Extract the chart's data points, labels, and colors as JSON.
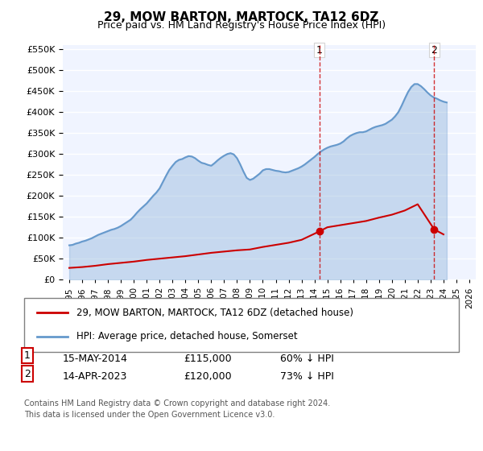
{
  "title": "29, MOW BARTON, MARTOCK, TA12 6DZ",
  "subtitle": "Price paid vs. HM Land Registry's House Price Index (HPI)",
  "legend_line1": "29, MOW BARTON, MARTOCK, TA12 6DZ (detached house)",
  "legend_line2": "HPI: Average price, detached house, Somerset",
  "footnote1": "Contains HM Land Registry data © Crown copyright and database right 2024.",
  "footnote2": "This data is licensed under the Open Government Licence v3.0.",
  "transaction1_label": "1",
  "transaction1_date": "15-MAY-2014",
  "transaction1_price": "£115,000",
  "transaction1_hpi": "60% ↓ HPI",
  "transaction2_label": "2",
  "transaction2_date": "14-APR-2023",
  "transaction2_price": "£120,000",
  "transaction2_hpi": "73% ↓ HPI",
  "hpi_color": "#6699cc",
  "price_color": "#cc0000",
  "dashed_vline_color": "#cc0000",
  "background_color": "#ffffff",
  "plot_bg_color": "#f0f4ff",
  "grid_color": "#ffffff",
  "ylim": [
    0,
    560000
  ],
  "yticks": [
    0,
    50000,
    100000,
    150000,
    200000,
    250000,
    300000,
    350000,
    400000,
    450000,
    500000,
    550000
  ],
  "xlim_start": 1994.5,
  "xlim_end": 2026.5,
  "marker1_x": 2014.37,
  "marker1_y": 115000,
  "marker2_x": 2023.28,
  "marker2_y": 120000,
  "hpi_years": [
    1995,
    1995.25,
    1995.5,
    1995.75,
    1996,
    1996.25,
    1996.5,
    1996.75,
    1997,
    1997.25,
    1997.5,
    1997.75,
    1998,
    1998.25,
    1998.5,
    1998.75,
    1999,
    1999.25,
    1999.5,
    1999.75,
    2000,
    2000.25,
    2000.5,
    2000.75,
    2001,
    2001.25,
    2001.5,
    2001.75,
    2002,
    2002.25,
    2002.5,
    2002.75,
    2003,
    2003.25,
    2003.5,
    2003.75,
    2004,
    2004.25,
    2004.5,
    2004.75,
    2005,
    2005.25,
    2005.5,
    2005.75,
    2006,
    2006.25,
    2006.5,
    2006.75,
    2007,
    2007.25,
    2007.5,
    2007.75,
    2008,
    2008.25,
    2008.5,
    2008.75,
    2009,
    2009.25,
    2009.5,
    2009.75,
    2010,
    2010.25,
    2010.5,
    2010.75,
    2011,
    2011.25,
    2011.5,
    2011.75,
    2012,
    2012.25,
    2012.5,
    2012.75,
    2013,
    2013.25,
    2013.5,
    2013.75,
    2014,
    2014.25,
    2014.5,
    2014.75,
    2015,
    2015.25,
    2015.5,
    2015.75,
    2016,
    2016.25,
    2016.5,
    2016.75,
    2017,
    2017.25,
    2017.5,
    2017.75,
    2018,
    2018.25,
    2018.5,
    2018.75,
    2019,
    2019.25,
    2019.5,
    2019.75,
    2020,
    2020.25,
    2020.5,
    2020.75,
    2021,
    2021.25,
    2021.5,
    2021.75,
    2022,
    2022.25,
    2022.5,
    2022.75,
    2023,
    2023.25,
    2023.5,
    2023.75,
    2024,
    2024.25
  ],
  "hpi_values": [
    82000,
    83000,
    86000,
    88000,
    91000,
    93000,
    96000,
    99000,
    103000,
    107000,
    110000,
    113000,
    116000,
    119000,
    121000,
    124000,
    128000,
    133000,
    138000,
    143000,
    151000,
    160000,
    168000,
    175000,
    182000,
    191000,
    200000,
    208000,
    218000,
    233000,
    248000,
    262000,
    272000,
    281000,
    286000,
    288000,
    292000,
    295000,
    294000,
    290000,
    284000,
    279000,
    277000,
    274000,
    272000,
    278000,
    285000,
    291000,
    296000,
    300000,
    302000,
    299000,
    290000,
    275000,
    258000,
    243000,
    238000,
    241000,
    247000,
    253000,
    261000,
    264000,
    264000,
    262000,
    260000,
    259000,
    257000,
    256000,
    257000,
    260000,
    263000,
    266000,
    270000,
    275000,
    281000,
    287000,
    293000,
    300000,
    306000,
    311000,
    315000,
    318000,
    320000,
    322000,
    325000,
    330000,
    337000,
    343000,
    347000,
    350000,
    352000,
    352000,
    354000,
    358000,
    362000,
    365000,
    367000,
    369000,
    372000,
    377000,
    382000,
    390000,
    400000,
    415000,
    432000,
    448000,
    460000,
    467000,
    467000,
    462000,
    455000,
    447000,
    440000,
    435000,
    432000,
    428000,
    425000,
    423000
  ],
  "price_years": [
    1995,
    1996,
    1997,
    1998,
    1999,
    2000,
    2001,
    2002,
    2003,
    2004,
    2005,
    2006,
    2007,
    2008,
    2009,
    2010,
    2011,
    2012,
    2013,
    2014.37,
    2015,
    2016,
    2017,
    2018,
    2019,
    2020,
    2021,
    2022,
    2023.28,
    2024
  ],
  "price_values": [
    28000,
    30000,
    33000,
    37000,
    40000,
    43000,
    47000,
    50000,
    53000,
    56000,
    60000,
    64000,
    67000,
    70000,
    72000,
    78000,
    83000,
    88000,
    95000,
    115000,
    125000,
    130000,
    135000,
    140000,
    148000,
    155000,
    165000,
    180000,
    120000,
    108000
  ]
}
